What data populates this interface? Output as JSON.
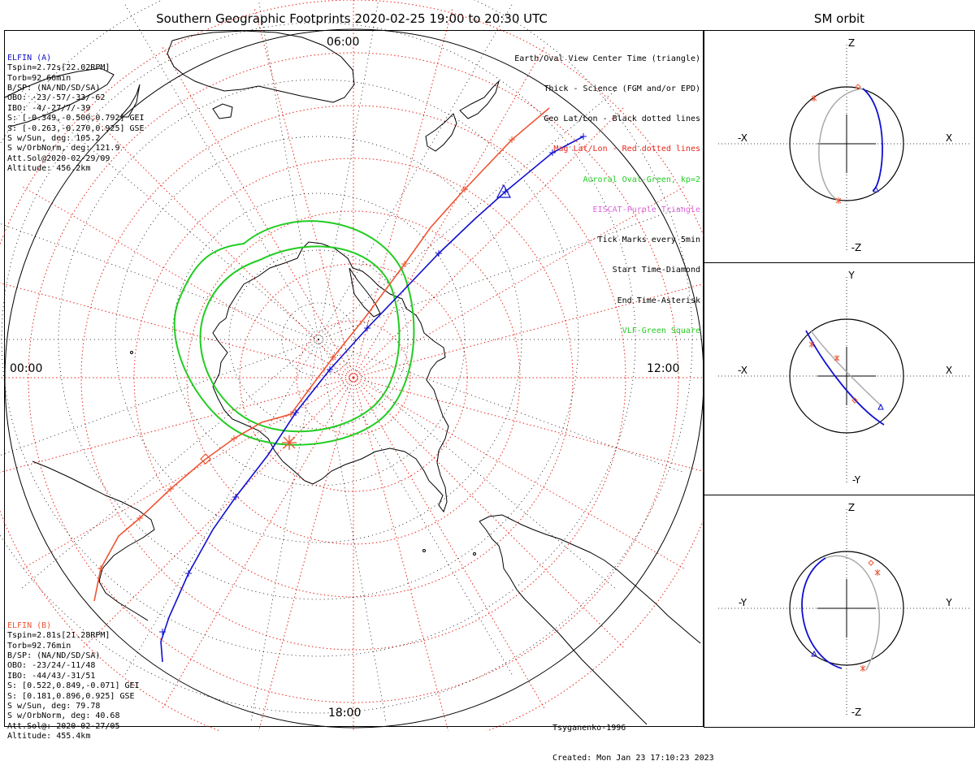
{
  "title": "Southern Geographic Footprints 2020-02-25 19:00 to 20:30 UTC",
  "sm_title": "SM orbit",
  "mlt_labels": {
    "top": "06:00",
    "left": "00:00",
    "right": "12:00",
    "bottom": "18:00"
  },
  "legend": [
    {
      "text": "Earth/Oval View Center Time (triangle)",
      "color": "#000000"
    },
    {
      "text": "Thick - Science (FGM and/or EPD)",
      "color": "#000000"
    },
    {
      "text": "Geo Lat/Lon - Black dotted lines",
      "color": "#000000"
    },
    {
      "text": "Mag Lat/Lon - Red dotted lines",
      "color": "#e8251a"
    },
    {
      "text": "Auroral Oval-Green, kp=2",
      "color": "#22cc22"
    },
    {
      "text": "EISCAT-Purple Triangle",
      "color": "#dd66dd"
    },
    {
      "text": "Tick Marks every 5min",
      "color": "#000000"
    },
    {
      "text": "Start Time-Diamond",
      "color": "#000000"
    },
    {
      "text": "End Time-Asterisk",
      "color": "#000000"
    },
    {
      "text": "VLF-Green Square",
      "color": "#22cc22"
    }
  ],
  "elfin_a": {
    "name": "ELFIN (A)",
    "color": "#1010d0",
    "lines": [
      "Tspin=2.72s[22.02RPM]",
      "Torb=92.66min",
      "B/SP: (NA/ND/SD/SA)",
      "OBO: -23/-57/-33/-62",
      "IBO: -4/-27/7/-39",
      "S: [-0.349,-0.500,0.792] GEI",
      "S: [-0.263,-0.270,0.925] GSE",
      "S w/Sun, deg: 105.2",
      "S w/OrbNorm, deg: 121.9",
      "Att.Sol@2020-02-29/09",
      "Altitude: 456.2km"
    ]
  },
  "elfin_b": {
    "name": "ELFIN (B)",
    "color": "#ee5533",
    "lines": [
      "Tspin=2.81s[21.28RPM]",
      "Torb=92.76min",
      "B/SP: (NA/ND/SD/SA)",
      "OBO: -23/24/-11/48",
      "IBO: -44/43/-31/51",
      "S: [0.522,0.849,-0.071] GEI",
      "S: [0.181,0.896,0.925] GSE",
      "S w/Sun, deg: 79.78",
      "S w/OrbNorm, deg: 40.68",
      "Att.Sol@: 2020-02-27/05",
      "Altitude: 455.4km"
    ]
  },
  "credits": {
    "model": "Tsyganenko-1996",
    "created": "Created: Mon Jan 23 17:10:23 2023"
  },
  "sm_panels": [
    {
      "top": "Z",
      "bottom": "-Z",
      "left": "-X",
      "right": "X"
    },
    {
      "top": "Y",
      "bottom": "-Y",
      "left": "-X",
      "right": "X"
    },
    {
      "top": "Z",
      "bottom": "-Z",
      "left": "-Y",
      "right": "Y"
    }
  ],
  "colors": {
    "elfin_a_track": "#1010d0",
    "elfin_b_track": "#ee5533",
    "oval": "#22cc22",
    "grid_mag": "#e8251a",
    "grid_geo": "#000000",
    "orbit_gray": "#aaaaaa"
  }
}
